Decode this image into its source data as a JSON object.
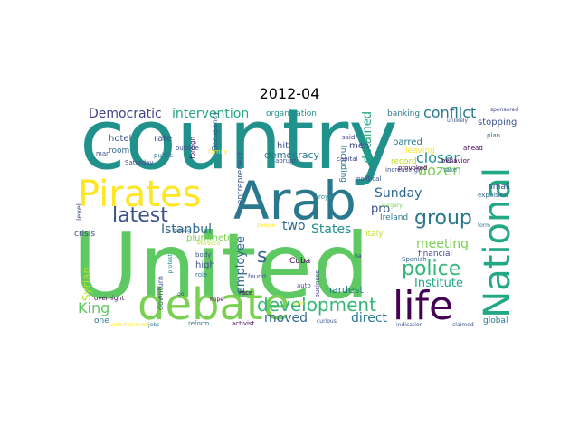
{
  "title": "2012-04",
  "words": [
    {
      "text": "country",
      "color": "#21918c"
    },
    {
      "text": "United",
      "color": "#5ec962"
    },
    {
      "text": "Arab",
      "color": "#2a788e"
    },
    {
      "text": "Pirates",
      "color": "#fde725"
    },
    {
      "text": "debate",
      "color": "#7ad151"
    },
    {
      "text": "life",
      "color": "#440154"
    },
    {
      "text": "National",
      "color": "#22a884"
    },
    {
      "text": "development",
      "color": "#35b779"
    },
    {
      "text": "police",
      "color": "#35b779"
    },
    {
      "text": "group",
      "color": "#2a788e"
    },
    {
      "text": "latest",
      "color": "#3b528b"
    },
    {
      "text": "conflict",
      "color": "#2a788e"
    },
    {
      "text": "democracy",
      "color": "#2a788e"
    },
    {
      "text": "Democratic",
      "color": "#414487"
    },
    {
      "text": "intervention",
      "color": "#22a884"
    },
    {
      "text": "closer",
      "color": "#21918c"
    },
    {
      "text": "dozen",
      "color": "#7ad151"
    },
    {
      "text": "Sunday",
      "color": "#31688e"
    },
    {
      "text": "meeting",
      "color": "#7ad151"
    },
    {
      "text": "King",
      "color": "#5ec962"
    },
    {
      "text": "moved",
      "color": "#31688e"
    },
    {
      "text": "direct",
      "color": "#2a788e"
    },
    {
      "text": "Istanbul",
      "color": "#31688e"
    },
    {
      "text": "States",
      "color": "#21918c"
    },
    {
      "text": "employee",
      "color": "#31688e"
    },
    {
      "text": "Syrian",
      "color": "#bddf26"
    },
    {
      "text": "Institute",
      "color": "#22a884"
    },
    {
      "text": "detained",
      "color": "#22a884"
    },
    {
      "text": "two",
      "color": "#31688e"
    },
    {
      "text": "s",
      "color": "#31688e"
    },
    {
      "text": "pro",
      "color": "#3b528b"
    },
    {
      "text": "Ireland",
      "color": "#2a788e"
    },
    {
      "text": "Italy",
      "color": "#bddf26"
    },
    {
      "text": "Cuba",
      "color": "#440154"
    },
    {
      "text": "hardest",
      "color": "#2a788e"
    },
    {
      "text": "high",
      "color": "#3b528b"
    },
    {
      "text": "financial",
      "color": "#414487"
    },
    {
      "text": "hotel",
      "color": "#3b528b"
    },
    {
      "text": "rate",
      "color": "#3b528b"
    },
    {
      "text": "room",
      "color": "#31688e"
    },
    {
      "text": "hit",
      "color": "#3b528b"
    },
    {
      "text": "men",
      "color": "#414487"
    },
    {
      "text": "barred",
      "color": "#2a788e"
    },
    {
      "text": "leaving",
      "color": "#fde725"
    },
    {
      "text": "record",
      "color": "#bddf26"
    },
    {
      "text": "small",
      "color": "#3b528b"
    },
    {
      "text": "plummeted",
      "color": "#7ad151"
    },
    {
      "text": "Occupancy",
      "color": "#3b528b"
    },
    {
      "text": "entrepreneur",
      "color": "#3b528b"
    },
    {
      "text": "including",
      "color": "#2a788e"
    },
    {
      "text": "stopping",
      "color": "#3b528b"
    },
    {
      "text": "banking",
      "color": "#2a788e"
    },
    {
      "text": "organization",
      "color": "#21918c"
    },
    {
      "text": "crisis",
      "color": "#414487"
    },
    {
      "text": "downturn",
      "color": "#3b528b"
    },
    {
      "text": "level",
      "color": "#3b528b"
    },
    {
      "text": "one",
      "color": "#2a788e"
    },
    {
      "text": "global",
      "color": "#2a788e"
    },
    {
      "text": "overnight",
      "color": "#440154"
    },
    {
      "text": "reform",
      "color": "#2a788e"
    },
    {
      "text": "activist",
      "color": "#440154"
    },
    {
      "text": "plan",
      "color": "#2a788e"
    },
    {
      "text": "said",
      "color": "#414487"
    },
    {
      "text": "capital",
      "color": "#414487"
    },
    {
      "text": "political",
      "color": "#3b528b"
    },
    {
      "text": "increasingly",
      "color": "#3b528b"
    },
    {
      "text": "Spanish",
      "color": "#31688e"
    },
    {
      "text": "ahead",
      "color": "#440154"
    },
    {
      "text": "behavior",
      "color": "#440154"
    },
    {
      "text": "expulsion",
      "color": "#31688e"
    },
    {
      "text": "provoked",
      "color": "#440154"
    },
    {
      "text": "take",
      "color": "#2a788e"
    },
    {
      "text": "Saturday",
      "color": "#414487"
    },
    {
      "text": "public",
      "color": "#2a788e"
    },
    {
      "text": "foreign",
      "color": "#440154"
    },
    {
      "text": "outside",
      "color": "#3b528b"
    },
    {
      "text": "man",
      "color": "#3b528b"
    },
    {
      "text": "family",
      "color": "#fde725"
    },
    {
      "text": "abrupt",
      "color": "#3b528b"
    },
    {
      "text": "royal",
      "color": "#21918c"
    },
    {
      "text": "sponsored",
      "color": "#414487"
    },
    {
      "text": "unlikely",
      "color": "#3b528b"
    },
    {
      "text": "business",
      "color": "#414487"
    },
    {
      "text": "auto",
      "color": "#3b528b"
    },
    {
      "text": "found",
      "color": "#3b528b"
    },
    {
      "text": "race",
      "color": "#440154"
    },
    {
      "text": "body",
      "color": "#3b528b"
    },
    {
      "text": "role",
      "color": "#2a788e"
    },
    {
      "text": "protest",
      "color": "#21918c"
    },
    {
      "text": "taking",
      "color": "#31688e"
    },
    {
      "text": "curious",
      "color": "#3b528b"
    },
    {
      "text": "indication",
      "color": "#3b528b"
    },
    {
      "text": "claimed",
      "color": "#3b528b"
    },
    {
      "text": "form",
      "color": "#2a788e"
    },
    {
      "text": "surgery",
      "color": "#7ad151"
    },
    {
      "text": "Morocco",
      "color": "#bddf26"
    },
    {
      "text": "people",
      "color": "#fde725"
    },
    {
      "text": "hope",
      "color": "#440154"
    },
    {
      "text": "ha",
      "color": "#414487"
    },
    {
      "text": "go",
      "color": "#3b528b"
    },
    {
      "text": "even",
      "color": "#fde725"
    },
    {
      "text": "jobs",
      "color": "#2a788e"
    },
    {
      "text": "entertainment",
      "color": "#fde725"
    }
  ]
}
